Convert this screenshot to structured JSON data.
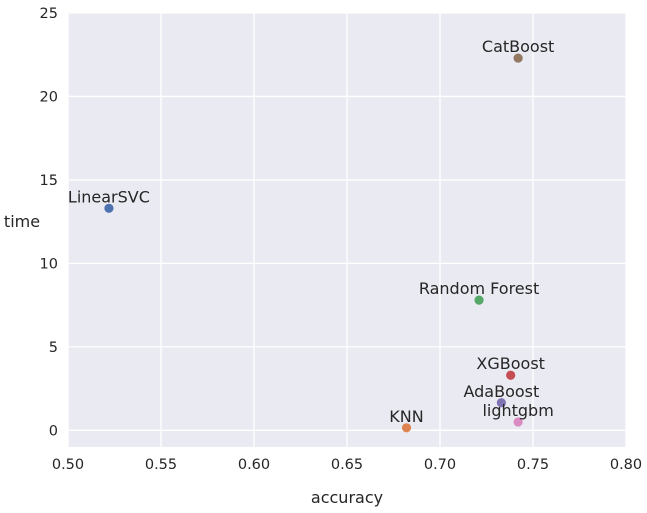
{
  "chart_data": {
    "type": "scatter",
    "title": "",
    "xlabel": "accuracy",
    "ylabel": "time",
    "xlim": [
      0.5,
      0.8
    ],
    "ylim": [
      -1,
      25
    ],
    "grid": true,
    "x_ticks": [
      "0.50",
      "0.55",
      "0.60",
      "0.65",
      "0.70",
      "0.75",
      "0.80"
    ],
    "y_ticks": [
      "0",
      "5",
      "10",
      "15",
      "20",
      "25"
    ],
    "points": [
      {
        "name": "LinearSVC",
        "x": 0.522,
        "y": 13.3,
        "color": "#4c72b0"
      },
      {
        "name": "KNN",
        "x": 0.682,
        "y": 0.15,
        "color": "#dd8452"
      },
      {
        "name": "Random Forest",
        "x": 0.721,
        "y": 7.8,
        "color": "#55a868"
      },
      {
        "name": "XGBoost",
        "x": 0.738,
        "y": 3.3,
        "color": "#c44e52"
      },
      {
        "name": "AdaBoost",
        "x": 0.733,
        "y": 1.65,
        "color": "#8172b3"
      },
      {
        "name": "CatBoost",
        "x": 0.742,
        "y": 22.3,
        "color": "#937860"
      },
      {
        "name": "lightgbm",
        "x": 0.742,
        "y": 0.5,
        "color": "#da8bc3"
      }
    ]
  }
}
